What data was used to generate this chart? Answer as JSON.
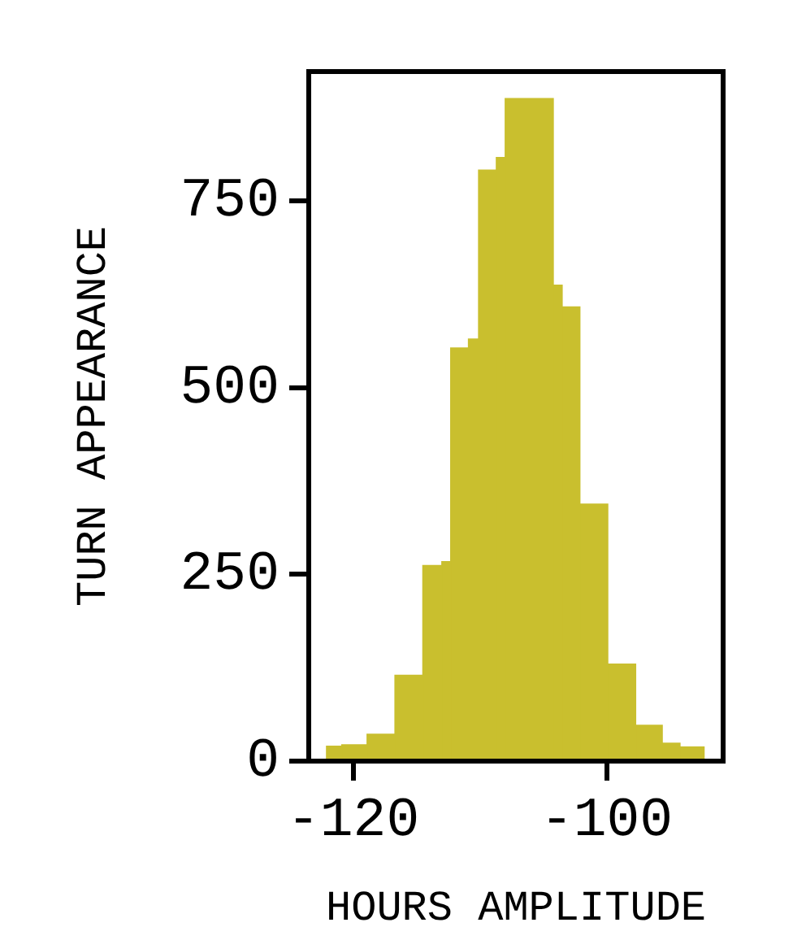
{
  "chart_data": {
    "type": "histogram",
    "xlabel": "HOURS AMPLITUDE",
    "ylabel": "TURN APPEARANCE",
    "bins": [
      -122.1,
      -120.9,
      -118.9,
      -116.7,
      -114.5,
      -113.0,
      -112.3,
      -110.9,
      -110.1,
      -108.7,
      -108.0,
      -104.2,
      -103.5,
      -102.1,
      -99.9,
      -97.7,
      -95.6,
      -94.2,
      -92.3
    ],
    "values": [
      20,
      22,
      36,
      115,
      262,
      267,
      553,
      565,
      791,
      808,
      887,
      637,
      608,
      344,
      130,
      48,
      24,
      19
    ],
    "color": "#c9bf2e",
    "xlim": [
      -123.5,
      -90.8
    ],
    "ylim": [
      0,
      923
    ],
    "xticks": [
      -120,
      -100
    ],
    "yticks": [
      0,
      250,
      500,
      750
    ],
    "grid": false,
    "legend": false
  }
}
